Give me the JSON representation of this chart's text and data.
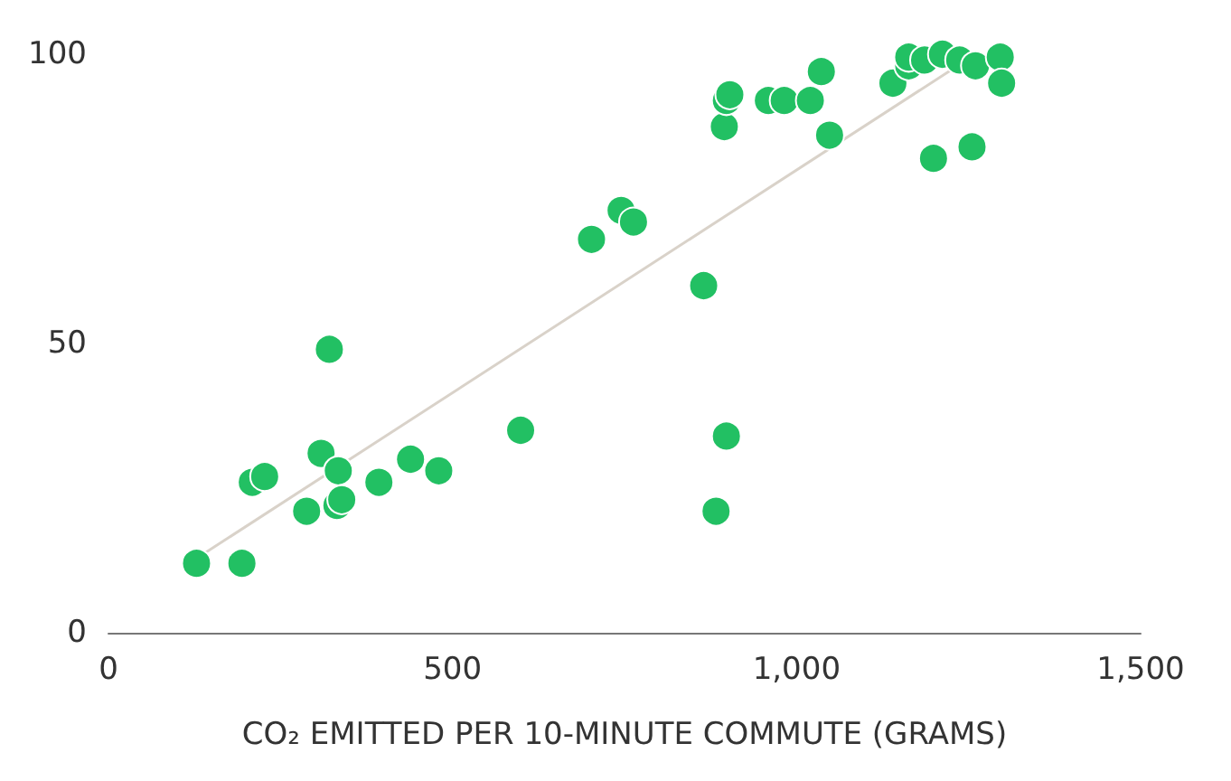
{
  "chart_data": {
    "type": "scatter",
    "xlabel": "CO₂ EMITTED PER 10-MINUTE COMMUTE (GRAMS)",
    "xlim": [
      0,
      1500
    ],
    "xticks": [
      0,
      500,
      {
        "value": 1000,
        "label": "1,000"
      },
      {
        "value": 1500,
        "label": "1,500"
      }
    ],
    "ylim": [
      0,
      100
    ],
    "yticks": [
      0,
      50,
      100
    ],
    "grid": false,
    "series": [
      {
        "type": "line",
        "color": "#d9d2c9",
        "x": [
          130,
          1260
        ],
        "values": [
          13,
          100
        ]
      },
      {
        "color": "#22c063",
        "marker": "circle",
        "x": [
          128,
          194,
          209,
          227,
          288,
          309,
          321,
          332,
          334,
          339,
          393,
          439,
          480,
          599,
          702,
          745,
          763,
          865,
          883,
          898,
          895,
          898,
          903,
          959,
          982,
          1020,
          1036,
          1048,
          1140,
          1163,
          1163,
          1186,
          1212,
          1237,
          1260,
          1199,
          1255,
          1296,
          1298
        ],
        "values": [
          12,
          12,
          26,
          27,
          21,
          31,
          49,
          22,
          28,
          23,
          26,
          30,
          28,
          35,
          68,
          73,
          71,
          60,
          21,
          34,
          87.5,
          92,
          93,
          92,
          92,
          92,
          97,
          86,
          95,
          98,
          99.5,
          99,
          100,
          99,
          98,
          82,
          84,
          99.5,
          95
        ]
      }
    ]
  }
}
